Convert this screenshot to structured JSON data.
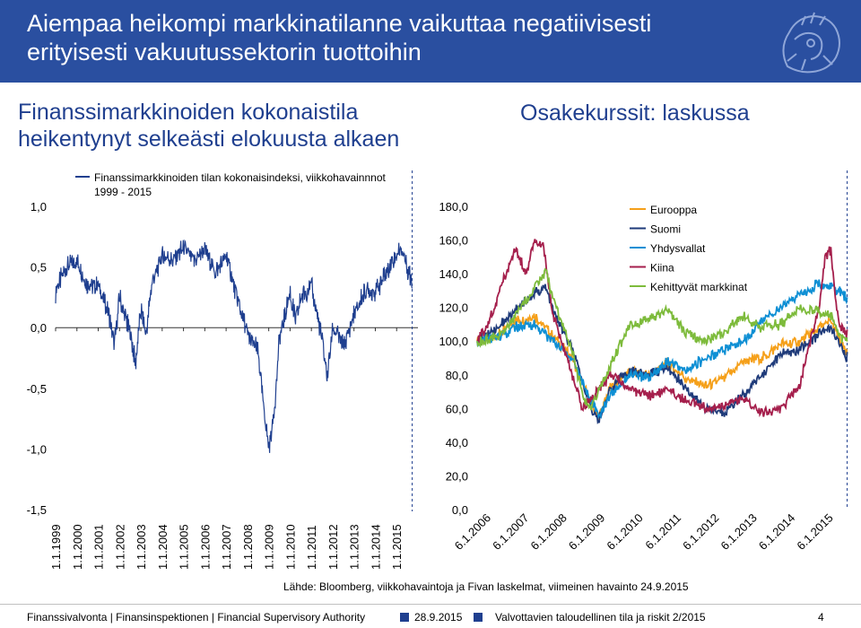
{
  "header": {
    "title_line1": "Aiempaa heikompi markkinatilanne vaikuttaa negatiivisesti",
    "title_line2": "erityisesti vakuutussektorin tuottoihin",
    "logo_icon": "lion-crest-icon"
  },
  "left_panel": {
    "heading_line1": "Finanssimarkkinoiden kokonaistila",
    "heading_line2": "heikentynyt selkeästi elokuusta alkaen"
  },
  "right_panel": {
    "heading": "Osakekurssit: laskussa"
  },
  "chart_data": [
    {
      "type": "line",
      "title": "Finanssimarkkinoiden tilan kokonaisindeksi, viikkohavainnnot",
      "subtitle": "1999 - 2015",
      "ylim": [
        -1.5,
        1.0
      ],
      "yticks": [
        "1,0",
        "0,5",
        "0,0",
        "-0,5",
        "-1,0",
        "-1,5"
      ],
      "xticks": [
        "1.1.1999",
        "1.1.2000",
        "1.1.2001",
        "1.1.2002",
        "1.1.2003",
        "1.1.2004",
        "1.1.2005",
        "1.1.2006",
        "1.1.2007",
        "1.1.2008",
        "1.1.2009",
        "1.1.2010",
        "1.1.2011",
        "1.1.2012",
        "1.1.2013",
        "1.1.2014",
        "1.1.2015"
      ],
      "grid": false,
      "series": [
        {
          "color": "#1f3f8f",
          "t": [
            1999.0,
            1999.5,
            2000.0,
            2000.5,
            2001.0,
            2001.5,
            2001.75,
            2002.0,
            2002.5,
            2002.75,
            2003.0,
            2003.25,
            2003.5,
            2004.0,
            2004.5,
            2005.0,
            2005.5,
            2006.0,
            2006.5,
            2007.0,
            2007.5,
            2007.75,
            2008.0,
            2008.5,
            2008.75,
            2009.0,
            2009.25,
            2009.5,
            2010.0,
            2010.25,
            2010.5,
            2011.0,
            2011.5,
            2011.75,
            2012.0,
            2012.5,
            2013.0,
            2013.5,
            2014.0,
            2014.5,
            2015.0,
            2015.25,
            2015.5,
            2015.6,
            2015.73
          ],
          "v": [
            0.3,
            0.5,
            0.55,
            0.35,
            0.35,
            0.1,
            -0.15,
            0.25,
            -0.05,
            -0.3,
            0.15,
            -0.05,
            0.35,
            0.6,
            0.55,
            0.65,
            0.55,
            0.65,
            0.45,
            0.6,
            0.25,
            0.1,
            -0.05,
            -0.2,
            -0.65,
            -1.0,
            -0.7,
            -0.1,
            0.3,
            0.05,
            0.25,
            0.35,
            -0.1,
            -0.4,
            0.0,
            -0.15,
            0.1,
            0.3,
            0.3,
            0.45,
            0.6,
            0.65,
            0.5,
            0.45,
            0.38
          ]
        }
      ]
    },
    {
      "type": "line",
      "title": "",
      "ylim": [
        0,
        180
      ],
      "yticks": [
        "180,0",
        "160,0",
        "140,0",
        "120,0",
        "100,0",
        "80,0",
        "60,0",
        "40,0",
        "20,0",
        "0,0"
      ],
      "xticks": [
        "6.1.2006",
        "6.1.2007",
        "6.1.2008",
        "6.1.2009",
        "6.1.2010",
        "6.1.2011",
        "6.1.2012",
        "6.1.2013",
        "6.1.2014",
        "6.1.2015"
      ],
      "legend_position": "top-right",
      "grid": false,
      "series": [
        {
          "name": "Eurooppa",
          "color": "#f5a01a",
          "t": [
            2006.0,
            2006.5,
            2007.0,
            2007.5,
            2008.0,
            2008.5,
            2009.0,
            2009.2,
            2009.5,
            2010.0,
            2010.5,
            2011.0,
            2011.5,
            2012.0,
            2012.5,
            2013.0,
            2013.5,
            2014.0,
            2014.5,
            2015.0,
            2015.3,
            2015.6,
            2015.73
          ],
          "v": [
            100,
            103,
            112,
            115,
            103,
            90,
            62,
            55,
            72,
            82,
            80,
            87,
            78,
            73,
            78,
            88,
            90,
            98,
            100,
            108,
            112,
            98,
            92
          ]
        },
        {
          "name": "Suomi",
          "color": "#1f3b7a",
          "t": [
            2006.0,
            2006.5,
            2007.0,
            2007.5,
            2007.8,
            2008.0,
            2008.5,
            2009.0,
            2009.2,
            2009.5,
            2010.0,
            2010.5,
            2011.0,
            2011.5,
            2012.0,
            2012.5,
            2013.0,
            2013.5,
            2014.0,
            2014.5,
            2015.0,
            2015.3,
            2015.6,
            2015.73
          ],
          "v": [
            100,
            108,
            118,
            128,
            132,
            118,
            95,
            60,
            52,
            72,
            82,
            80,
            85,
            72,
            60,
            58,
            68,
            80,
            92,
            95,
            105,
            108,
            95,
            90
          ]
        },
        {
          "name": "Yhdysvallat",
          "color": "#0e8fd4",
          "t": [
            2006.0,
            2006.5,
            2007.0,
            2007.5,
            2008.0,
            2008.5,
            2009.0,
            2009.2,
            2009.5,
            2010.0,
            2010.5,
            2011.0,
            2011.5,
            2012.0,
            2012.5,
            2013.0,
            2013.5,
            2014.0,
            2014.5,
            2015.0,
            2015.5,
            2015.73
          ],
          "v": [
            100,
            102,
            108,
            110,
            100,
            90,
            65,
            55,
            68,
            80,
            78,
            88,
            82,
            90,
            95,
            100,
            112,
            120,
            128,
            134,
            130,
            125
          ]
        },
        {
          "name": "Kiina",
          "color": "#a51f4c",
          "t": [
            2006.0,
            2006.3,
            2006.6,
            2007.0,
            2007.3,
            2007.5,
            2007.75,
            2008.0,
            2008.5,
            2008.75,
            2009.0,
            2009.5,
            2010.0,
            2010.5,
            2011.0,
            2011.5,
            2012.0,
            2012.5,
            2013.0,
            2013.5,
            2014.0,
            2014.5,
            2014.75,
            2015.0,
            2015.15,
            2015.3,
            2015.5,
            2015.73
          ],
          "v": [
            100,
            110,
            130,
            155,
            140,
            160,
            155,
            115,
            80,
            60,
            65,
            80,
            72,
            68,
            70,
            65,
            60,
            62,
            65,
            58,
            60,
            75,
            100,
            120,
            150,
            155,
            110,
            105
          ]
        },
        {
          "name": "Kehittyvät markkinat",
          "color": "#7dbb3b",
          "t": [
            2006.0,
            2006.5,
            2007.0,
            2007.5,
            2007.8,
            2008.0,
            2008.5,
            2008.8,
            2009.0,
            2009.5,
            2010.0,
            2010.5,
            2011.0,
            2011.5,
            2012.0,
            2012.5,
            2013.0,
            2013.5,
            2014.0,
            2014.5,
            2015.0,
            2015.3,
            2015.6,
            2015.73
          ],
          "v": [
            100,
            102,
            115,
            132,
            142,
            125,
            95,
            65,
            60,
            85,
            110,
            112,
            118,
            105,
            100,
            105,
            115,
            108,
            110,
            120,
            118,
            115,
            100,
            102
          ]
        }
      ]
    }
  ],
  "source": "Lähde: Bloomberg, viikkohavaintoja ja Fivan laskelmat, viimeinen havainto 24.9.2015",
  "footer": {
    "org": "Finanssivalvonta | Finansinspektionen | Financial Supervisory Authority",
    "date": "28.9.2015",
    "report": "Valvottavien taloudellinen tila ja riskit 2/2015",
    "page": "4",
    "accent": "#1f3f8f"
  }
}
